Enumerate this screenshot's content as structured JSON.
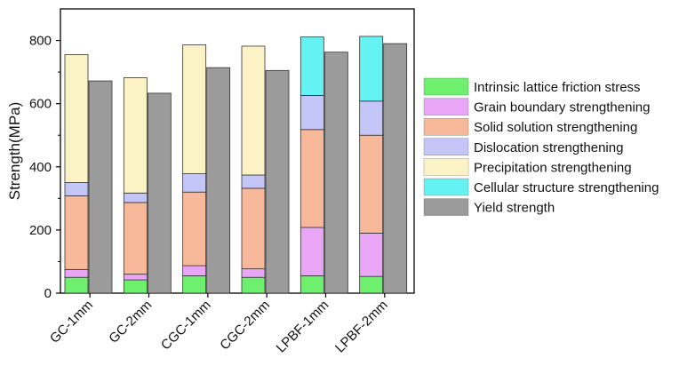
{
  "chart_data": {
    "type": "bar",
    "title": "",
    "xlabel": "",
    "ylabel": "Strength(MPa)",
    "ylim": [
      0,
      900
    ],
    "yticks": [
      0,
      200,
      400,
      600,
      800
    ],
    "categories": [
      "GC-1mm",
      "GC-2mm",
      "CGC-1mm",
      "CGC-2mm",
      "LPBF-1mm",
      "LPBF-2mm"
    ],
    "stacked_series": [
      {
        "name": "Intrinsic lattice friction stress",
        "color": "#6ef06e",
        "values": [
          50,
          42,
          55,
          50,
          55,
          53
        ]
      },
      {
        "name": "Grain boundary strengthening",
        "color": "#e9a6f7",
        "values": [
          25,
          18,
          32,
          27,
          153,
          137
        ]
      },
      {
        "name": "Solid solution strengthening",
        "color": "#f8b99a",
        "values": [
          233,
          227,
          233,
          255,
          310,
          310
        ]
      },
      {
        "name": "Dislocation strengthening",
        "color": "#c4c6f7",
        "values": [
          42,
          30,
          58,
          42,
          108,
          108
        ]
      },
      {
        "name": "Precipitation strengthening",
        "color": "#fbf3c6",
        "values": [
          405,
          365,
          408,
          408,
          0,
          0
        ]
      },
      {
        "name": "Cellular structure strengthening",
        "color": "#64f2f2",
        "values": [
          0,
          0,
          0,
          0,
          185,
          205
        ]
      }
    ],
    "yield_series": {
      "name": "Yield strength",
      "color": "#9b9b9b",
      "values": [
        672,
        633,
        714,
        705,
        763,
        790
      ]
    },
    "legend_placement": "right",
    "grid": false
  }
}
